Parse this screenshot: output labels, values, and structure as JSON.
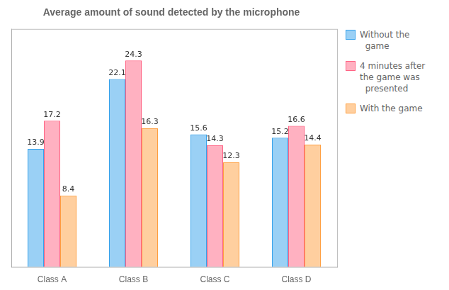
{
  "chart_data": {
    "type": "bar",
    "title": "Average amount of sound detected by the microphone",
    "categories": [
      "Class A",
      "Class B",
      "Class C",
      "Class D"
    ],
    "series": [
      {
        "name": "Without the\n  game",
        "values": [
          13.9,
          22.1,
          15.6,
          15.2
        ]
      },
      {
        "name": "4 minutes after\nthe game was\n  presented",
        "values": [
          17.2,
          24.3,
          14.3,
          16.6
        ]
      },
      {
        "name": "With the game",
        "values": [
          8.4,
          16.3,
          12.3,
          14.4
        ]
      }
    ],
    "ylim": [
      0,
      28
    ],
    "grid": false,
    "data_labels": true,
    "tick_labels": "x",
    "legend": "right"
  }
}
